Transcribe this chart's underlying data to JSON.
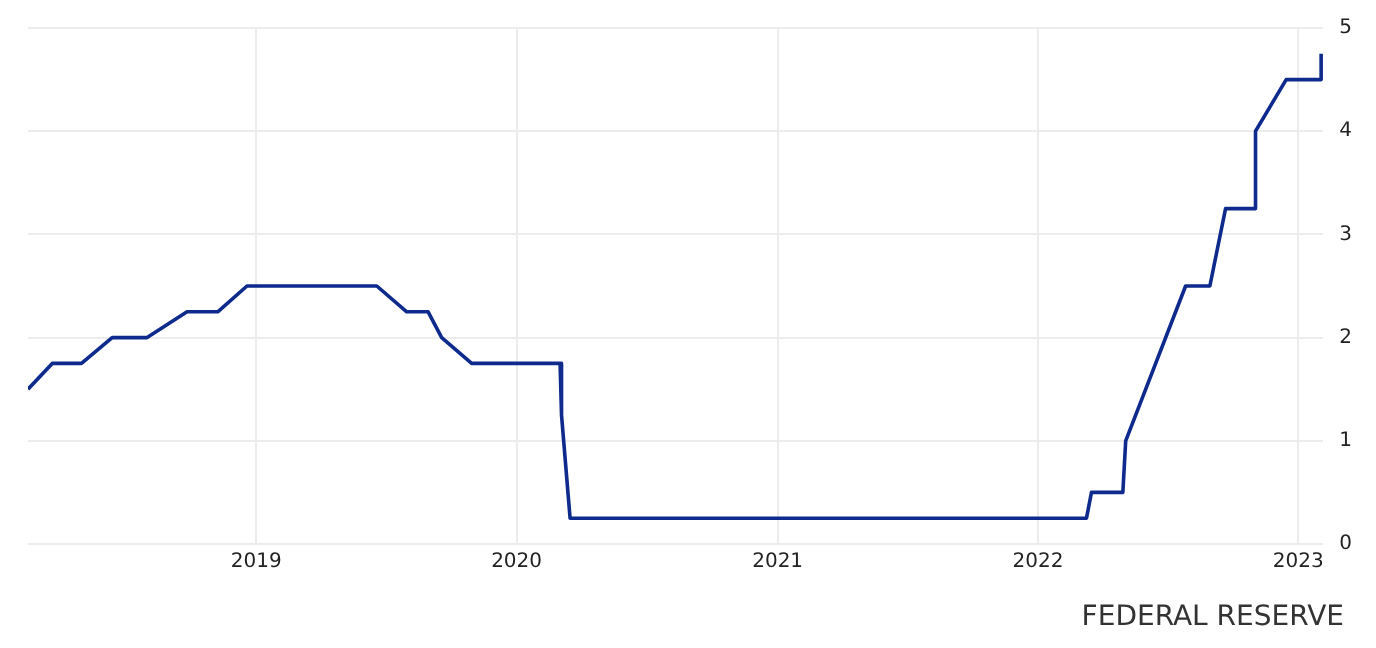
{
  "chart_data": {
    "type": "line",
    "x": [
      "2018-02-15",
      "2018-03-21",
      "2018-05-01",
      "2018-06-13",
      "2018-08-01",
      "2018-09-26",
      "2018-11-08",
      "2018-12-19",
      "2019-06-19",
      "2019-07-31",
      "2019-08-30",
      "2019-09-18",
      "2019-10-30",
      "2020-03-02",
      "2020-03-04",
      "2020-03-16",
      "2022-03-10",
      "2022-03-17",
      "2022-04-30",
      "2022-05-04",
      "2022-07-27",
      "2022-08-30",
      "2022-09-21",
      "2022-10-31",
      "2022-11-02",
      "2022-12-15",
      "2023-02-01",
      "2023-02-02"
    ],
    "series": [
      {
        "color": "#0d2a8c",
        "values": [
          1.5,
          1.75,
          1.75,
          2.0,
          2.0,
          2.25,
          2.25,
          2.5,
          2.5,
          2.25,
          2.25,
          2.0,
          1.75,
          1.75,
          1.25,
          0.25,
          0.25,
          0.5,
          0.5,
          1.0,
          2.5,
          2.5,
          3.25,
          3.25,
          4.0,
          4.5,
          4.5,
          4.75
        ]
      }
    ],
    "xlim": [
      "2018-02-15",
      "2023-02-05"
    ],
    "xticks": [
      "2019",
      "2020",
      "2021",
      "2022",
      "2023"
    ],
    "ylim": [
      0,
      5
    ],
    "yticks": [
      0,
      1,
      2,
      3,
      4,
      5
    ],
    "grid": true,
    "legend": false,
    "marker": "none",
    "line_style": "solid",
    "annotations": [
      "FEDERAL RESERVE"
    ]
  }
}
